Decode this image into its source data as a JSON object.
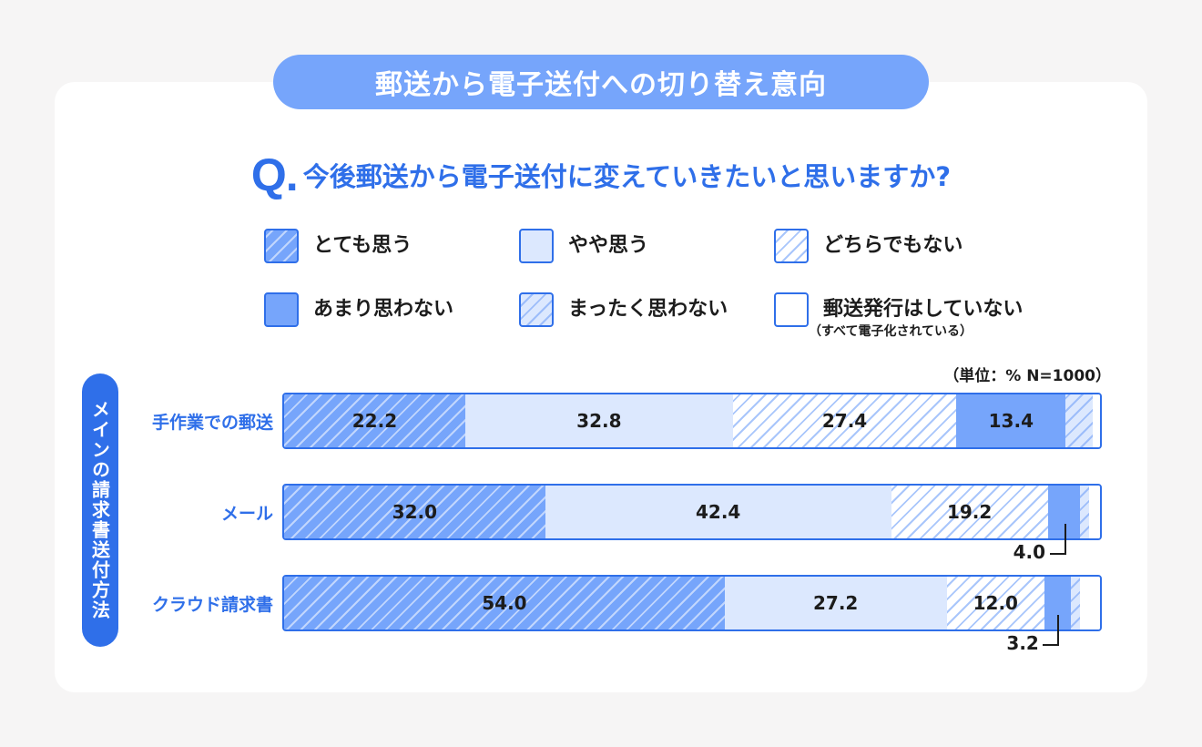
{
  "header": {
    "title": "郵送から電子送付への切り替え意向"
  },
  "question": {
    "mark": "Q.",
    "text": "今後郵送から電子送付に変えていきたいと思いますか?"
  },
  "legend": [
    {
      "label": "とても思う",
      "sub": "",
      "pattern": "strong"
    },
    {
      "label": "やや思う",
      "sub": "",
      "pattern": "some"
    },
    {
      "label": "どちらでもない",
      "sub": "",
      "pattern": "neutral"
    },
    {
      "label": "あまり思わない",
      "sub": "",
      "pattern": "not"
    },
    {
      "label": "まったく思わない",
      "sub": "",
      "pattern": "none"
    },
    {
      "label": "郵送発行はしていない",
      "sub": "（すべて電子化されている）",
      "pattern": "nosend"
    }
  ],
  "unit_note": "（単位：%  N=1000）",
  "axis_group_label": "メインの請求書送付方法",
  "colors": {
    "accent": "#2f6fe9",
    "strong": "#76a5fb",
    "light": "#dce8fe"
  },
  "chart_data": {
    "type": "bar",
    "orientation": "horizontal",
    "stacked": true,
    "categories": [
      "手作業での郵送",
      "メール",
      "クラウド請求書"
    ],
    "series": [
      {
        "name": "とても思う",
        "values": [
          22.2,
          32.0,
          54.0
        ]
      },
      {
        "name": "やや思う",
        "values": [
          32.8,
          42.4,
          27.2
        ]
      },
      {
        "name": "どちらでもない",
        "values": [
          27.4,
          19.2,
          12.0
        ]
      },
      {
        "name": "あまり思わない",
        "values": [
          13.4,
          4.0,
          3.2
        ]
      },
      {
        "name": "まったく思わない",
        "values": [
          3.3,
          1.1,
          1.1
        ]
      },
      {
        "name": "郵送発行はしていない",
        "values": [
          0.9,
          1.3,
          2.5
        ]
      }
    ],
    "data_labels": [
      [
        "22.2",
        "32.8",
        "27.4",
        "13.4",
        "",
        ""
      ],
      [
        "32.0",
        "42.4",
        "19.2",
        "",
        "",
        ""
      ],
      [
        "54.0",
        "27.2",
        "12.0",
        "",
        "",
        ""
      ]
    ],
    "callouts": [
      {
        "row": 1,
        "series": 3,
        "label": "4.0"
      },
      {
        "row": 2,
        "series": 3,
        "label": "3.2"
      }
    ],
    "xlim": [
      0,
      100
    ]
  }
}
